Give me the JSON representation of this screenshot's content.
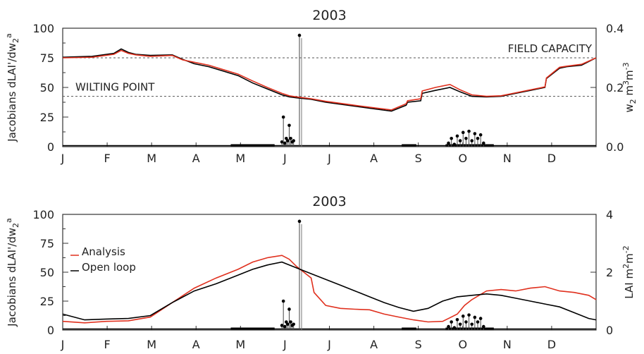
{
  "chart_data": [
    {
      "type": "line",
      "title": "2003",
      "ylabel_left": "Jacobians dLAI'/dw",
      "ylabel_left_sub": "2",
      "ylabel_left_sup": "a",
      "ylabel_right": "w",
      "ylabel_right_sub": "2",
      "ylabel_right_unit": "m",
      "ylabel_right_unit_sup": "3",
      "ylabel_right_unit2": "m",
      "ylabel_right_unit2_sup": "-3",
      "months": [
        "J",
        "F",
        "M",
        "A",
        "M",
        "J",
        "J",
        "A",
        "S",
        "O",
        "N",
        "D"
      ],
      "ylim_left": [
        0,
        100
      ],
      "yticks_left": [
        "0",
        "25",
        "50",
        "75",
        "100"
      ],
      "ylim_right": [
        0,
        0.4
      ],
      "yticks_right": [
        "0.0",
        "0.2",
        "0.4"
      ],
      "annotations": [
        {
          "text": "FIELD CAPACITY",
          "y": 0.3
        },
        {
          "text": "WILTING POINT",
          "y": 0.17
        }
      ],
      "series": [
        {
          "color": "#000000",
          "x": [
            0,
            20,
            35,
            40,
            45,
            50,
            60,
            75,
            82,
            90,
            100,
            110,
            120,
            130,
            140,
            150,
            155,
            160,
            170,
            180,
            195,
            210,
            225,
            235,
            236,
            245,
            246,
            255,
            265,
            272,
            280,
            290,
            300,
            310,
            320,
            330,
            331,
            340,
            345,
            355,
            365
          ],
          "y": [
            0.302,
            0.305,
            0.315,
            0.33,
            0.318,
            0.312,
            0.308,
            0.31,
            0.295,
            0.28,
            0.27,
            0.255,
            0.24,
            0.215,
            0.195,
            0.175,
            0.168,
            0.165,
            0.16,
            0.15,
            0.14,
            0.13,
            0.12,
            0.14,
            0.15,
            0.155,
            0.18,
            0.19,
            0.2,
            0.185,
            0.17,
            0.168,
            0.17,
            0.18,
            0.19,
            0.2,
            0.23,
            0.265,
            0.27,
            0.275,
            0.3
          ]
        },
        {
          "color": "#e0301e",
          "x": [
            0,
            20,
            35,
            40,
            45,
            50,
            60,
            75,
            82,
            90,
            100,
            110,
            120,
            130,
            140,
            150,
            155,
            160,
            170,
            180,
            195,
            210,
            225,
            235,
            236,
            245,
            246,
            255,
            265,
            272,
            280,
            290,
            300,
            310,
            320,
            330,
            331,
            340,
            345,
            355,
            365
          ],
          "y": [
            0.3,
            0.302,
            0.312,
            0.325,
            0.315,
            0.31,
            0.305,
            0.308,
            0.293,
            0.285,
            0.275,
            0.26,
            0.245,
            0.222,
            0.2,
            0.18,
            0.172,
            0.168,
            0.162,
            0.153,
            0.143,
            0.133,
            0.124,
            0.145,
            0.155,
            0.162,
            0.188,
            0.2,
            0.21,
            0.192,
            0.175,
            0.17,
            0.172,
            0.182,
            0.192,
            0.202,
            0.232,
            0.268,
            0.272,
            0.278,
            0.3
          ]
        }
      ],
      "jacobians": {
        "x": [
          150,
          151,
          152,
          153,
          154,
          155,
          156,
          157,
          158,
          162,
          264,
          266,
          268,
          270,
          272,
          274,
          276,
          278,
          280,
          282,
          284,
          286,
          288
        ],
        "y": [
          4,
          25,
          3,
          7,
          5,
          18,
          7,
          4,
          5,
          94,
          3,
          7,
          2,
          9,
          5,
          12,
          7,
          13,
          5,
          11,
          7,
          10,
          3
        ]
      }
    },
    {
      "type": "line",
      "title": "2003",
      "ylabel_left": "Jacobians dLAI'/dw",
      "ylabel_left_sub": "2",
      "ylabel_left_sup": "a",
      "ylabel_right": "LAI",
      "ylabel_right_unit": "m",
      "ylabel_right_unit_sup": "2",
      "ylabel_right_unit2": "m",
      "ylabel_right_unit2_sup": "-2",
      "months": [
        "J",
        "F",
        "M",
        "A",
        "M",
        "J",
        "J",
        "A",
        "S",
        "O",
        "N",
        "D"
      ],
      "ylim_left": [
        0,
        100
      ],
      "yticks_left": [
        "0",
        "25",
        "50",
        "75",
        "100"
      ],
      "ylim_right": [
        0,
        4
      ],
      "yticks_right": [
        "0",
        "2",
        "4"
      ],
      "legend": {
        "position": "left",
        "entries": [
          {
            "label": "Analysis",
            "color": "#e0301e"
          },
          {
            "label": "Open loop",
            "color": "#000000"
          }
        ]
      },
      "series": [
        {
          "name": "Analysis",
          "color": "#e0301e",
          "x": [
            0,
            15,
            30,
            45,
            60,
            75,
            90,
            105,
            120,
            130,
            140,
            150,
            155,
            160,
            165,
            170,
            172,
            180,
            190,
            200,
            210,
            220,
            230,
            240,
            250,
            260,
            270,
            275,
            280,
            290,
            300,
            310,
            320,
            330,
            340,
            350,
            360,
            365
          ],
          "y": [
            0.3,
            0.25,
            0.3,
            0.32,
            0.45,
            0.95,
            1.45,
            1.8,
            2.1,
            2.35,
            2.5,
            2.58,
            2.45,
            2.2,
            2.0,
            1.8,
            1.3,
            0.85,
            0.75,
            0.72,
            0.7,
            0.55,
            0.45,
            0.35,
            0.28,
            0.3,
            0.55,
            0.85,
            1.05,
            1.35,
            1.4,
            1.35,
            1.45,
            1.5,
            1.35,
            1.3,
            1.2,
            1.05
          ]
        },
        {
          "name": "Open loop",
          "color": "#000000",
          "x": [
            0,
            15,
            30,
            45,
            60,
            75,
            90,
            105,
            120,
            130,
            140,
            150,
            155,
            160,
            170,
            180,
            190,
            200,
            210,
            220,
            230,
            240,
            250,
            260,
            270,
            280,
            290,
            300,
            310,
            320,
            330,
            340,
            350,
            360,
            365
          ],
          "y": [
            0.55,
            0.35,
            0.38,
            0.4,
            0.5,
            0.95,
            1.35,
            1.6,
            1.9,
            2.1,
            2.25,
            2.35,
            2.25,
            2.15,
            1.95,
            1.75,
            1.55,
            1.35,
            1.15,
            0.95,
            0.78,
            0.65,
            0.75,
            1.0,
            1.15,
            1.2,
            1.25,
            1.2,
            1.1,
            1.0,
            0.9,
            0.8,
            0.6,
            0.4,
            0.35
          ]
        }
      ],
      "jacobians": {
        "x": [
          150,
          151,
          152,
          153,
          154,
          155,
          156,
          157,
          158,
          162,
          264,
          266,
          268,
          270,
          272,
          274,
          276,
          278,
          280,
          282,
          284,
          286,
          288
        ],
        "y": [
          4,
          25,
          3,
          7,
          5,
          18,
          7,
          4,
          5,
          94,
          3,
          7,
          2,
          9,
          5,
          12,
          7,
          13,
          5,
          11,
          7,
          10,
          3
        ]
      }
    }
  ]
}
